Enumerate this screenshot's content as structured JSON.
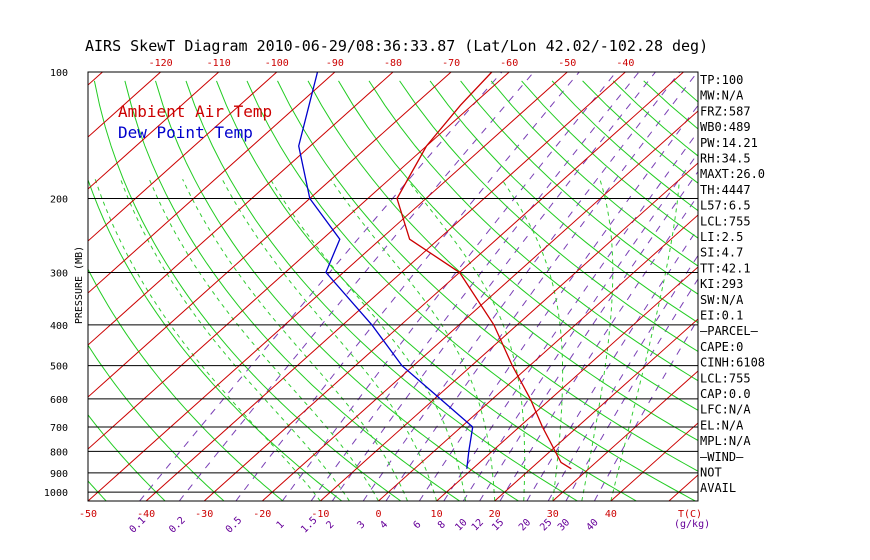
{
  "chart_data": {
    "type": "line",
    "title": "AIRS SkewT Diagram 2010-06-29/08:36:33.87 (Lat/Lon 42.02/-102.28 deg)",
    "ylabel": "PRESSURE (MB)",
    "x_units_label": "T(C)",
    "mixing_ratio_units_label": "(g/kg)",
    "y_scale": "log",
    "ylim": [
      1050,
      100
    ],
    "xlim_bottom": [
      -50,
      55
    ],
    "pressure_ticks": [
      100,
      200,
      300,
      400,
      500,
      600,
      700,
      800,
      900,
      1000
    ],
    "bottom_temp_ticks": [
      -50,
      -40,
      -30,
      -20,
      -10,
      0,
      10,
      20,
      30,
      40
    ],
    "top_temp_ticks": [
      -120,
      -110,
      -100,
      -90,
      -80,
      -70,
      -60,
      -50,
      -40
    ],
    "mixing_ratio_labels": [
      "0.1",
      "0.2",
      "0.5",
      "1",
      "1.5",
      "2",
      "3",
      "4",
      "6",
      "8",
      "10",
      "12",
      "15",
      "20",
      "25",
      "30",
      "40"
    ],
    "grid": true,
    "legend_position": "top-left",
    "series": [
      {
        "name": "Ambient Air Temp",
        "color": "#cc0000",
        "points": [
          {
            "p": 880,
            "t": 27.0
          },
          {
            "p": 850,
            "t": 24.0
          },
          {
            "p": 700,
            "t": 14.0
          },
          {
            "p": 600,
            "t": 6.5
          },
          {
            "p": 500,
            "t": -3.0
          },
          {
            "p": 400,
            "t": -14.0
          },
          {
            "p": 300,
            "t": -30.0
          },
          {
            "p": 250,
            "t": -45.0
          },
          {
            "p": 200,
            "t": -55.0
          },
          {
            "p": 150,
            "t": -60.0
          },
          {
            "p": 120,
            "t": -62.0
          },
          {
            "p": 100,
            "t": -63.0
          }
        ]
      },
      {
        "name": "Dew Point Temp",
        "color": "#0000cc",
        "points": [
          {
            "p": 880,
            "t": 9.0
          },
          {
            "p": 800,
            "t": 6.0
          },
          {
            "p": 700,
            "t": 2.0
          },
          {
            "p": 600,
            "t": -9.0
          },
          {
            "p": 500,
            "t": -22.0
          },
          {
            "p": 400,
            "t": -35.0
          },
          {
            "p": 300,
            "t": -53.0
          },
          {
            "p": 250,
            "t": -57.0
          },
          {
            "p": 200,
            "t": -70.0
          },
          {
            "p": 150,
            "t": -82.0
          },
          {
            "p": 100,
            "t": -93.0
          }
        ]
      }
    ],
    "indices": [
      "TP:100",
      "MW:N/A",
      "FRZ:587",
      "WB0:489",
      "PW:14.21",
      "RH:34.5",
      "MAXT:26.0",
      "TH:4447",
      "L57:6.5",
      "LCL:755",
      "LI:2.5",
      "SI:4.7",
      "TT:42.1",
      "KI:293",
      "SW:N/A",
      "EI:0.1",
      "—PARCEL—",
      "CAPE:0",
      "CINH:6108",
      "LCL:755",
      "CAP:0.0",
      "LFC:N/A",
      "EL:N/A",
      "MPL:N/A",
      "—WIND—",
      "NOT",
      "AVAIL"
    ]
  }
}
